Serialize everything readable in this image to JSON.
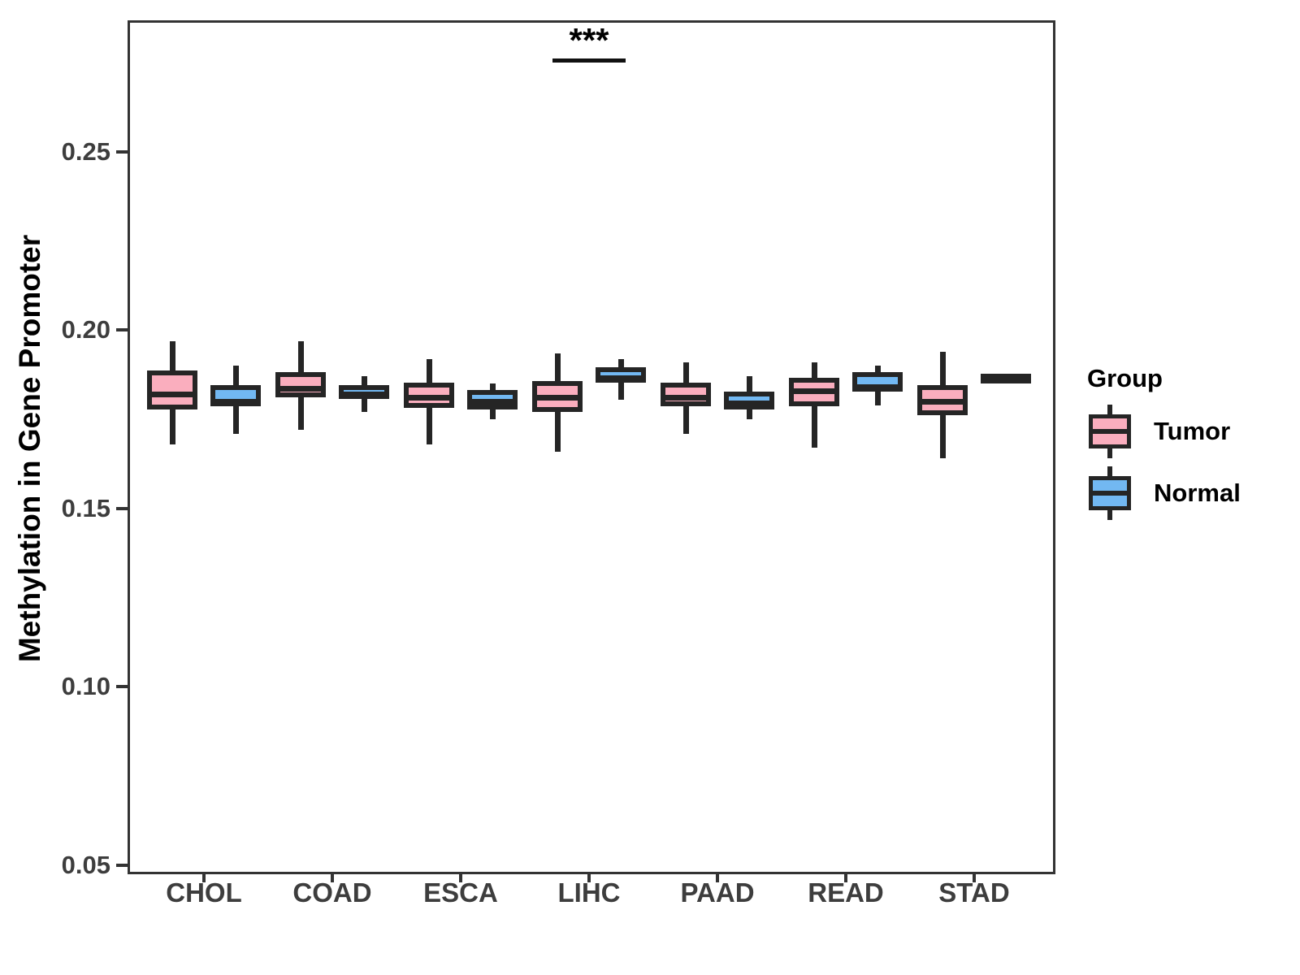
{
  "figure": {
    "background": "#FFFFFF"
  },
  "chart_data": {
    "type": "boxplot",
    "title": "",
    "xlabel": "",
    "ylabel": "Methylation in Gene Promoter",
    "categories": [
      "CHOL",
      "COAD",
      "ESCA",
      "LIHC",
      "PAAD",
      "READ",
      "STAD"
    ],
    "yticks": [
      {
        "value": 0.25,
        "label": "0.25"
      },
      {
        "value": 0.2,
        "label": "0.20"
      },
      {
        "value": 0.15,
        "label": "0.15"
      },
      {
        "value": 0.1,
        "label": "0.10"
      },
      {
        "value": 0.05,
        "label": "0.05"
      }
    ],
    "ylim": [
      0.0488,
      0.2869
    ],
    "grid": false,
    "legend_position": "right",
    "colors": {
      "tumor_fill": "#FAAEBE",
      "normal_fill": "#72B8F2",
      "box_stroke": "#252525",
      "axis": "#333333",
      "tick_text": "#3d3d3d"
    },
    "series": [
      {
        "name": "Tumor",
        "fill": "#FAAEBE",
        "stroke": "#252525",
        "boxes": [
          {
            "category": "CHOL",
            "whisker_low": 0.168,
            "q1": 0.177,
            "median": 0.182,
            "q3": 0.188,
            "whisker_high": 0.197
          },
          {
            "category": "COAD",
            "whisker_low": 0.172,
            "q1": 0.1805,
            "median": 0.1835,
            "q3": 0.1875,
            "whisker_high": 0.197
          },
          {
            "category": "ESCA",
            "whisker_low": 0.168,
            "q1": 0.1775,
            "median": 0.181,
            "q3": 0.1845,
            "whisker_high": 0.192
          },
          {
            "category": "LIHC",
            "whisker_low": 0.166,
            "q1": 0.1765,
            "median": 0.181,
            "q3": 0.185,
            "whisker_high": 0.1935
          },
          {
            "category": "PAAD",
            "whisker_low": 0.171,
            "q1": 0.178,
            "median": 0.181,
            "q3": 0.1845,
            "whisker_high": 0.191
          },
          {
            "category": "READ",
            "whisker_low": 0.167,
            "q1": 0.178,
            "median": 0.183,
            "q3": 0.186,
            "whisker_high": 0.191
          },
          {
            "category": "STAD",
            "whisker_low": 0.164,
            "q1": 0.1755,
            "median": 0.18,
            "q3": 0.184,
            "whisker_high": 0.194
          }
        ]
      },
      {
        "name": "Normal",
        "fill": "#72B8F2",
        "stroke": "#252525",
        "boxes": [
          {
            "category": "CHOL",
            "whisker_low": 0.171,
            "q1": 0.178,
            "median": 0.18,
            "q3": 0.184,
            "whisker_high": 0.19
          },
          {
            "category": "COAD",
            "whisker_low": 0.177,
            "q1": 0.18,
            "median": 0.182,
            "q3": 0.184,
            "whisker_high": 0.187
          },
          {
            "category": "ESCA",
            "whisker_low": 0.175,
            "q1": 0.177,
            "median": 0.18,
            "q3": 0.1825,
            "whisker_high": 0.185
          },
          {
            "category": "LIHC",
            "whisker_low": 0.1805,
            "q1": 0.1845,
            "median": 0.1865,
            "q3": 0.189,
            "whisker_high": 0.192
          },
          {
            "category": "PAAD",
            "whisker_low": 0.175,
            "q1": 0.177,
            "median": 0.1795,
            "q3": 0.182,
            "whisker_high": 0.187
          },
          {
            "category": "READ",
            "whisker_low": 0.179,
            "q1": 0.182,
            "median": 0.184,
            "q3": 0.1875,
            "whisker_high": 0.19
          },
          {
            "category": "STAD",
            "whisker_low": 0.187,
            "q1": 0.187,
            "median": 0.187,
            "q3": 0.187,
            "whisker_high": 0.187
          }
        ]
      }
    ],
    "annotations": [
      {
        "text": "***",
        "category": "LIHC",
        "bar_y": 0.2757
      }
    ]
  },
  "legend": {
    "title": "Group",
    "items": [
      {
        "label": "Tumor",
        "color": "#FAAEBE"
      },
      {
        "label": "Normal",
        "color": "#72B8F2"
      }
    ]
  }
}
